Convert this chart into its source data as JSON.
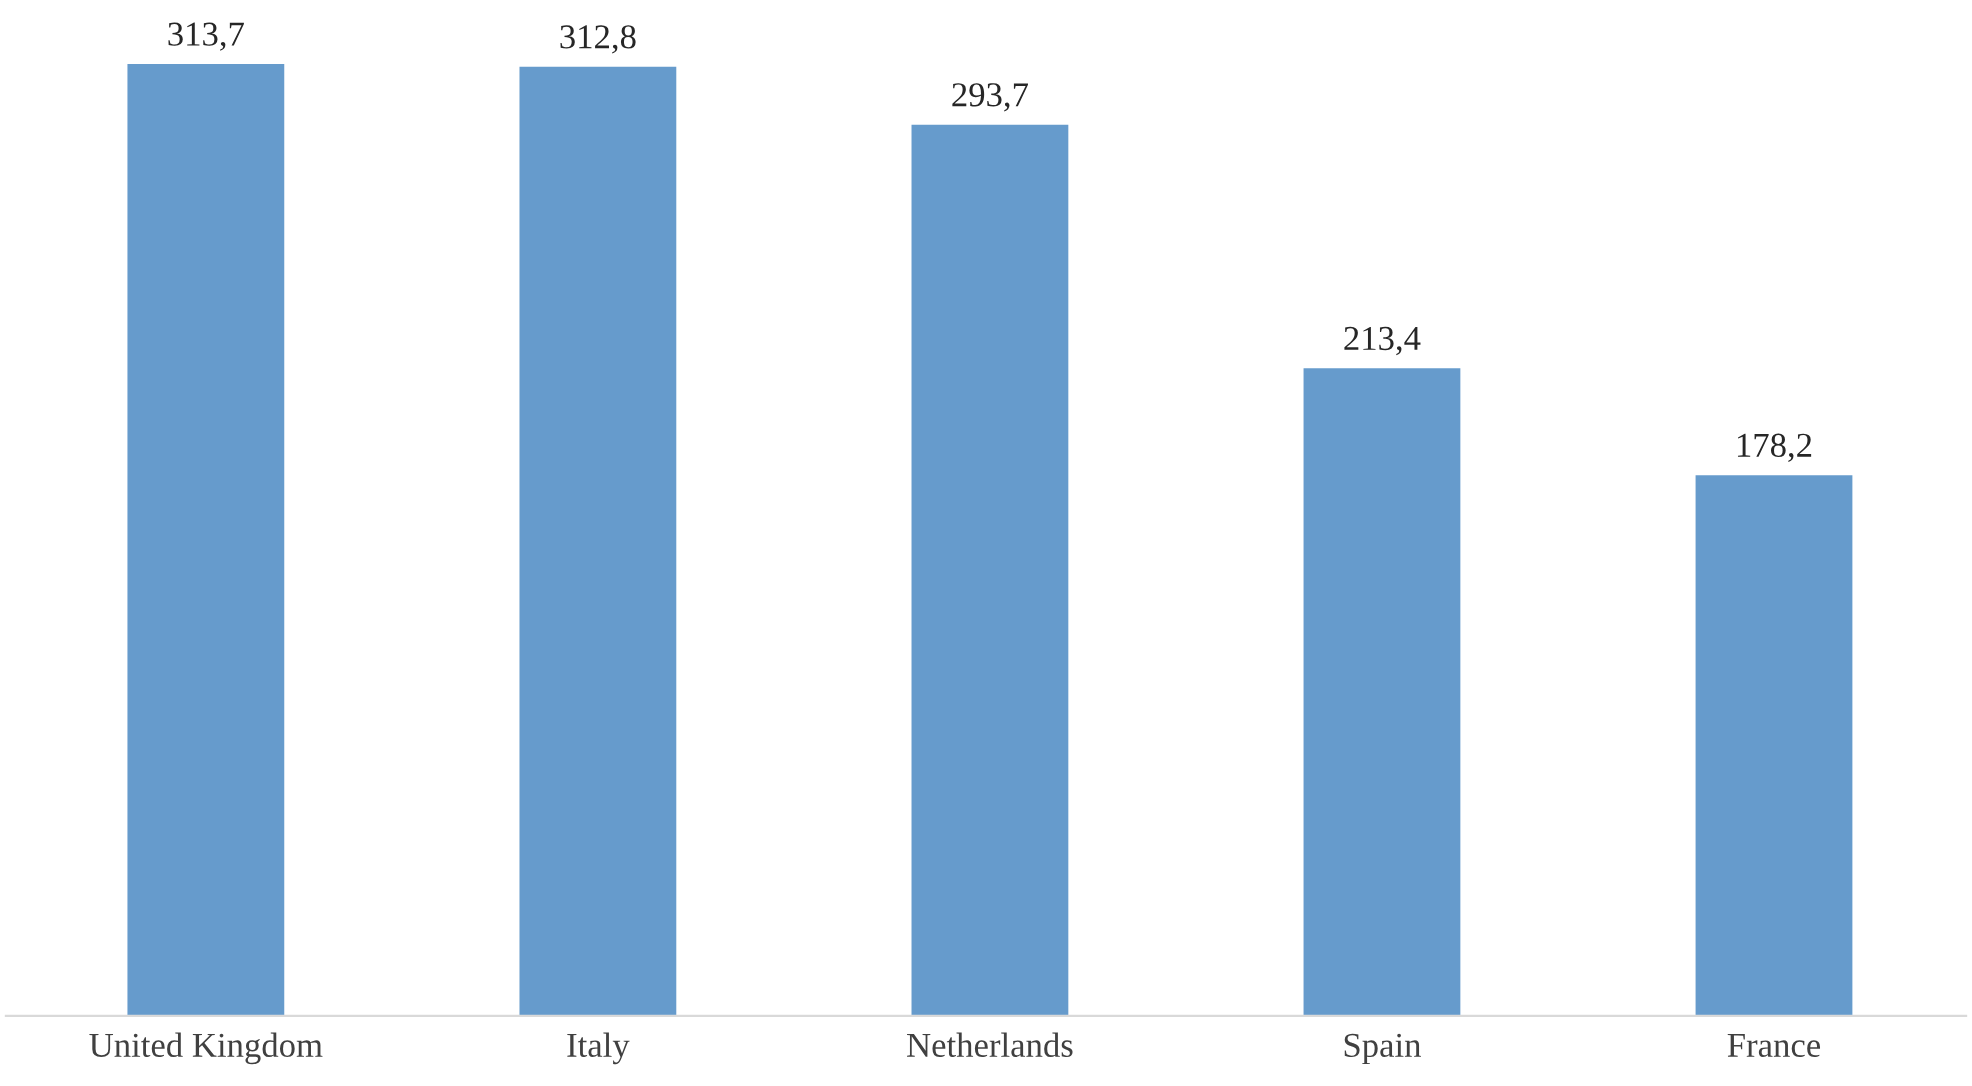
{
  "chart_data": {
    "type": "bar",
    "categories": [
      "United Kingdom",
      "Italy",
      "Netherlands",
      "Spain",
      "France"
    ],
    "values": [
      313.7,
      312.8,
      293.7,
      213.4,
      178.2
    ],
    "value_labels": [
      "313,7",
      "312,8",
      "293,7",
      "213,4",
      "178,2"
    ],
    "color": "#669bcc",
    "grid": false,
    "legend": false
  }
}
